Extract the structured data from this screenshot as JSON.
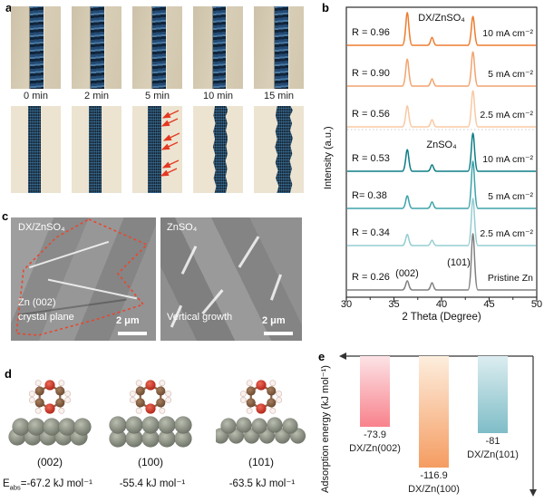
{
  "panel_a": {
    "letter": "a",
    "time_labels": [
      "0 min",
      "2 min",
      "5 min",
      "10 min",
      "15 min"
    ]
  },
  "panel_b": {
    "letter": "b",
    "section1_title": "DX/ZnSO₄",
    "section2_title": "ZnSO₄",
    "peak_label_002": "(002)",
    "peak_label_101": "(101)",
    "xlabel": "2 Theta (Degree)",
    "ylabel": "Intensity (a.u.)"
  },
  "panel_c": {
    "letter": "c",
    "left": {
      "title": "DX/ZnSO₄",
      "annotation_line1": "Zn (002)",
      "annotation_line2": "crystal plane",
      "scale": "2 μm"
    },
    "right": {
      "title": "ZnSO₄",
      "annotation": "Vertical growth",
      "scale": "2 μm"
    },
    "outline_color": "#e8472e"
  },
  "panel_d": {
    "letter": "d",
    "facets": [
      "(002)",
      "(100)",
      "(101)"
    ],
    "e_prefix": "E",
    "e_sub": "abs",
    "e_values": [
      "=-67.2 kJ mol⁻¹",
      "-55.4 kJ mol⁻¹",
      "-63.5 kJ mol⁻¹"
    ],
    "atom_colors": {
      "O": "#d93025",
      "C": "#8d6248",
      "H": "#f7eeea",
      "Zn": "#848a7e"
    }
  },
  "panel_e": {
    "letter": "e"
  },
  "chart_data": [
    {
      "type": "line",
      "panel": "b",
      "title_groups": [
        "DX/ZnSO₄",
        "ZnSO₄"
      ],
      "xlabel": "2 Theta (Degree)",
      "ylabel": "Intensity (a.u.)",
      "xlim": [
        30,
        50
      ],
      "x_ticks": [
        30,
        35,
        40,
        45,
        50
      ],
      "peak_positions_2theta": [
        36.4,
        39.0,
        43.3
      ],
      "peak_annotations": [
        {
          "text": "(002)",
          "x": 36.4
        },
        {
          "text": "(101)",
          "x": 43.3
        }
      ],
      "series": [
        {
          "name": "R = 0.96",
          "condition": "10 mA cm⁻²",
          "group": "DX/ZnSO₄",
          "color": "#ed7d31",
          "peak_heights": [
            0.86,
            0.21,
            0.76
          ]
        },
        {
          "name": "R = 0.90",
          "condition": "5 mA cm⁻²",
          "group": "DX/ZnSO₄",
          "color": "#f2a46f",
          "peak_heights": [
            0.71,
            0.19,
            0.9
          ]
        },
        {
          "name": "R = 0.56",
          "condition": "2.5 mA cm⁻²",
          "group": "DX/ZnSO₄",
          "color": "#f8c9a4",
          "peak_heights": [
            0.55,
            0.19,
            0.95
          ]
        },
        {
          "name": "R = 0.53",
          "condition": "10 mA cm⁻²",
          "group": "ZnSO₄",
          "color": "#0f7e86",
          "peak_heights": [
            0.57,
            0.17,
            1.0
          ]
        },
        {
          "name": "R= 0.38",
          "condition": "5 mA cm⁻²",
          "group": "ZnSO₄",
          "color": "#3fa3ab",
          "peak_heights": [
            0.33,
            0.17,
            1.24
          ]
        },
        {
          "name": "R = 0.34",
          "condition": "2.5 mA cm⁻²",
          "group": "ZnSO₄",
          "color": "#96cdd2",
          "peak_heights": [
            0.29,
            0.14,
            1.24
          ]
        },
        {
          "name": "R = 0.26",
          "condition": "Pristine Zn",
          "group": "ZnSO₄",
          "color": "#808080",
          "peak_heights": [
            0.24,
            0.19,
            1.48
          ]
        }
      ]
    },
    {
      "type": "bar",
      "panel": "e",
      "ylabel": "Adsorption energy (kJ mol⁻¹)",
      "categories": [
        "DX/Zn(002)",
        "DX/Zn(100)",
        "DX/Zn(101)"
      ],
      "values": [
        -73.9,
        -116.9,
        -81
      ],
      "value_labels": [
        "-73.9",
        "-116.9",
        "-81"
      ],
      "bar_colors_top": [
        "#fce3e6",
        "#fdeede",
        "#dcedf0"
      ],
      "bar_colors_bottom": [
        "#f8828c",
        "#f59c61",
        "#7fbdc7"
      ]
    }
  ]
}
